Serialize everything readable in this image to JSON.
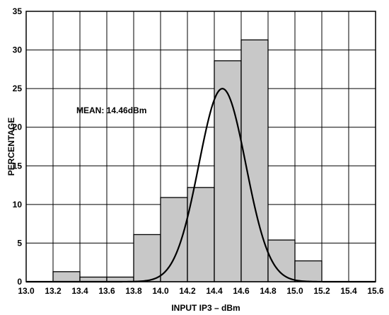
{
  "chart_data": {
    "type": "bar",
    "subtype": "histogram with fitted normal curve",
    "xlabel": "INPUT IP3 – dBm",
    "ylabel": "PERCENTAGE",
    "annotation": "MEAN: 14.46dBm",
    "xlim": [
      13.0,
      15.6
    ],
    "ylim": [
      0,
      35
    ],
    "x_ticks": [
      "13.0",
      "13.2",
      "13.4",
      "13.6",
      "13.8",
      "14.0",
      "14.2",
      "14.4",
      "14.6",
      "14.8",
      "15.0",
      "15.2",
      "15.4",
      "15.6"
    ],
    "y_ticks": [
      "0",
      "5",
      "10",
      "15",
      "20",
      "25",
      "30",
      "35"
    ],
    "bin_width": 0.2,
    "bins": [
      {
        "start": 13.2,
        "end": 13.4,
        "value": 1.3
      },
      {
        "start": 13.4,
        "end": 13.6,
        "value": 0.6
      },
      {
        "start": 13.6,
        "end": 13.8,
        "value": 0.6
      },
      {
        "start": 13.8,
        "end": 14.0,
        "value": 6.1
      },
      {
        "start": 14.0,
        "end": 14.2,
        "value": 10.9
      },
      {
        "start": 14.2,
        "end": 14.4,
        "value": 12.2
      },
      {
        "start": 14.4,
        "end": 14.6,
        "value": 28.6
      },
      {
        "start": 14.6,
        "end": 14.8,
        "value": 31.3
      },
      {
        "start": 14.8,
        "end": 15.0,
        "value": 5.4
      },
      {
        "start": 15.0,
        "end": 15.2,
        "value": 2.7
      }
    ],
    "curve": {
      "type": "normal",
      "mean": 14.46,
      "peak": 25.0,
      "sigma": 0.175
    },
    "grid": true,
    "colors": {
      "bar_fill": "#c8c8c8",
      "bar_stroke": "#000000",
      "grid": "#000000",
      "curve": "#000000"
    }
  }
}
